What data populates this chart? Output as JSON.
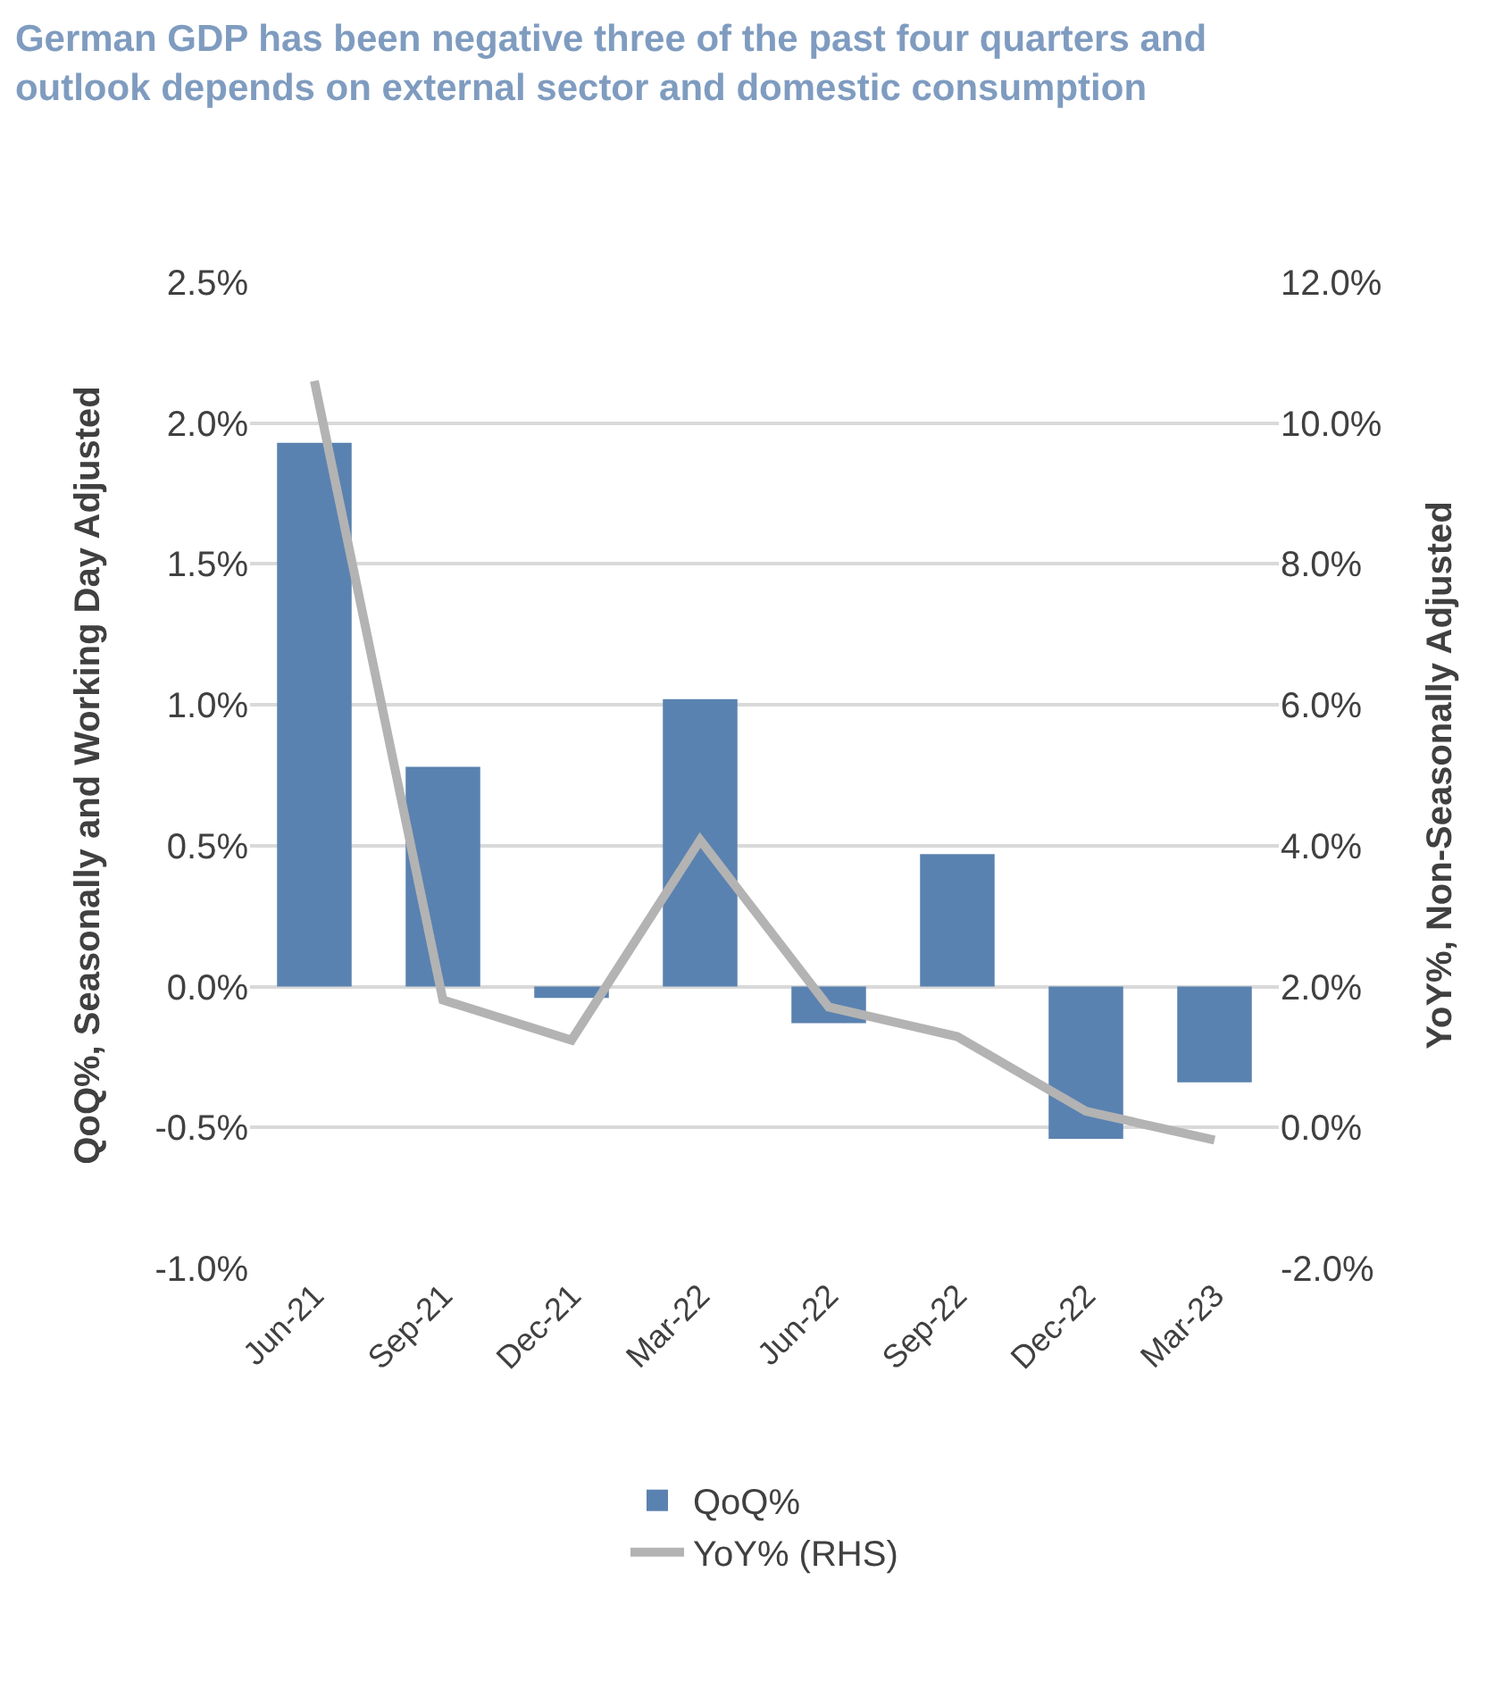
{
  "chart_data": {
    "type": "bar",
    "title": "German GDP has been negative three of the past four quarters and outlook depends on external sector and domestic consumption",
    "ylabel": "QoQ%, Seasonally and Working Day Adjusted",
    "y2label": "YoY%, Non-Seasonally Adjusted",
    "categories": [
      "Jun-21",
      "Sep-21",
      "Dec-21",
      "Mar-22",
      "Jun-22",
      "Sep-22",
      "Dec-22",
      "Mar-23"
    ],
    "series": [
      {
        "name": "QoQ%",
        "color": "#5a82b0",
        "values": [
          1.93,
          0.78,
          -0.04,
          1.02,
          -0.13,
          0.47,
          -0.54,
          -0.34
        ]
      },
      {
        "name": "YoY% (RHS)",
        "type": "line",
        "axis": "y2",
        "color": "#b3b3b3",
        "values": [
          10.6,
          1.81,
          1.24,
          4.08,
          1.71,
          1.29,
          0.23,
          -0.18
        ]
      }
    ],
    "ylim": [
      -1.0,
      2.5
    ],
    "yticks": [
      {
        "value": -1.0,
        "label": "-1.0%"
      },
      {
        "value": -0.5,
        "label": "-0.5%"
      },
      {
        "value": 0.0,
        "label": "0.0%"
      },
      {
        "value": 0.5,
        "label": "0.5%"
      },
      {
        "value": 1.0,
        "label": "1.0%"
      },
      {
        "value": 1.5,
        "label": "1.5%"
      },
      {
        "value": 2.0,
        "label": "2.0%"
      },
      {
        "value": 2.5,
        "label": "2.5%"
      }
    ],
    "y2lim": [
      -2.0,
      12.0
    ],
    "y2ticks": [
      {
        "value": -2.0,
        "label": "-2.0%"
      },
      {
        "value": 0.0,
        "label": "0.0%"
      },
      {
        "value": 2.0,
        "label": "2.0%"
      },
      {
        "value": 4.0,
        "label": "4.0%"
      },
      {
        "value": 6.0,
        "label": "6.0%"
      },
      {
        "value": 8.0,
        "label": "8.0%"
      },
      {
        "value": 10.0,
        "label": "10.0%"
      },
      {
        "value": 12.0,
        "label": "12.0%"
      }
    ],
    "grid": "y",
    "legend": "bottom",
    "line_style": "solid",
    "marker": "none"
  }
}
